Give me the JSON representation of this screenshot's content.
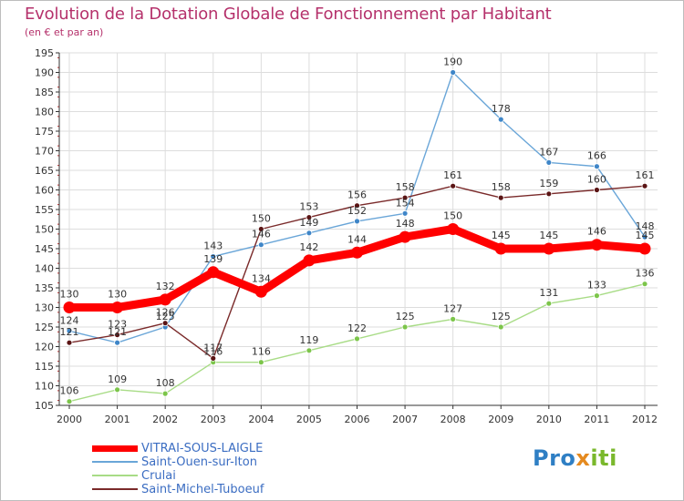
{
  "header": {
    "title": "Evolution de la Dotation Globale de Fonctionnement par Habitant",
    "subtitle": "(en € et par an)"
  },
  "colors": {
    "title": "#b5316b",
    "grid": "#dddddd",
    "axis": "#333333",
    "legend_text": "#3b6dc2"
  },
  "chart_data": {
    "type": "line",
    "title": "Evolution de la Dotation Globale de Fonctionnement par Habitant",
    "subtitle": "(en € et par an)",
    "xlabel": "",
    "ylabel": "",
    "ylim": [
      105,
      195
    ],
    "ytick_step": 5,
    "grid": true,
    "legend_position": "bottom-left",
    "categories": [
      "2000",
      "2001",
      "2002",
      "2003",
      "2004",
      "2005",
      "2006",
      "2007",
      "2008",
      "2009",
      "2010",
      "2011",
      "2012"
    ],
    "series": [
      {
        "name": "VITRAI-SOUS-LAIGLE",
        "color": "#ff0000",
        "style": "thick",
        "values": [
          130,
          130,
          132,
          139,
          134,
          142,
          144,
          148,
          150,
          145,
          145,
          146,
          145
        ],
        "labels": [
          "130",
          "130",
          "132",
          "139",
          "134",
          "142",
          "144",
          "148",
          "150",
          "145",
          "145",
          "146",
          "145"
        ]
      },
      {
        "name": "Saint-Ouen-sur-Iton",
        "color": "#6aa6d8",
        "marker": "#3f86c8",
        "style": "thin",
        "values": [
          124,
          121,
          125,
          143,
          146,
          149,
          152,
          154,
          190,
          178,
          167,
          166,
          148
        ],
        "labels": [
          "124",
          "121",
          "125",
          "143",
          "146",
          "149",
          "152",
          "154",
          "190",
          "178",
          "167",
          "166",
          "148"
        ]
      },
      {
        "name": "Crulai",
        "color": "#a8dc86",
        "marker": "#7cc54a",
        "style": "thin",
        "values": [
          106,
          109,
          108,
          116,
          116,
          119,
          122,
          125,
          127,
          125,
          131,
          133,
          136
        ],
        "labels": [
          "106",
          "109",
          "108",
          "116",
          "116",
          "119",
          "122",
          "125",
          "127",
          "125",
          "131",
          "133",
          "136"
        ]
      },
      {
        "name": "Saint-Michel-Tuboeuf",
        "color": "#7a2a2a",
        "marker": "#5a1414",
        "style": "thin",
        "values": [
          121,
          123,
          126,
          117,
          150,
          153,
          156,
          158,
          161,
          158,
          159,
          160,
          161
        ],
        "labels": [
          "121",
          "123",
          "126",
          "117",
          "150",
          "153",
          "156",
          "158",
          "161",
          "158",
          "159",
          "160",
          "161"
        ]
      }
    ]
  },
  "logo": {
    "part1": "Pro",
    "part2": "x",
    "part3": "iti"
  }
}
